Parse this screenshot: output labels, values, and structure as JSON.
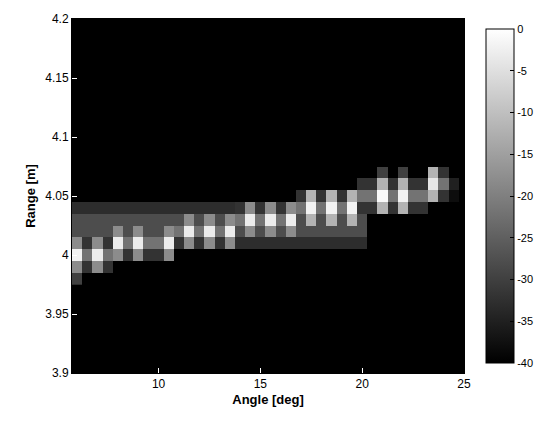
{
  "chart_data": {
    "type": "heatmap",
    "xlabel": "Angle [deg]",
    "ylabel": "Range [m]",
    "x": [
      6.0,
      6.5,
      7.0,
      7.5,
      8.0,
      8.5,
      9.0,
      9.5,
      10.0,
      10.5,
      11.0,
      11.5,
      12.0,
      12.5,
      13.0,
      13.5,
      14.0,
      14.5,
      15.0,
      15.5,
      16.0,
      16.5,
      17.0,
      17.5,
      18.0,
      18.5,
      19.0,
      19.5,
      20.0,
      20.5,
      21.0,
      21.5,
      22.0,
      22.5,
      23.0,
      23.5,
      24.0,
      24.5,
      25.0
    ],
    "y": [
      3.98,
      3.99,
      4.0,
      4.01,
      4.02,
      4.03,
      4.04,
      4.05,
      4.06,
      4.07,
      4.08
    ],
    "values": [
      [
        -30,
        -40,
        -40,
        -40,
        -40,
        -40,
        -40,
        -40,
        -40,
        -40,
        -40,
        -40,
        -40,
        -40,
        -40,
        -40,
        -40,
        -40,
        -40,
        -40,
        -40,
        -40,
        -40,
        -40,
        -40,
        -40,
        -40,
        -40,
        -40,
        -40,
        -40,
        -40,
        -40,
        -40,
        -40,
        -40,
        -40,
        -40,
        -40
      ],
      [
        -18,
        -32,
        -18,
        -32,
        -40,
        -40,
        -40,
        -40,
        -40,
        -40,
        -40,
        -40,
        -40,
        -40,
        -40,
        -40,
        -40,
        -40,
        -40,
        -40,
        -40,
        -40,
        -40,
        -40,
        -40,
        -40,
        -40,
        -40,
        -40,
        -40,
        -40,
        -40,
        -40,
        -40,
        -40,
        -40,
        -40,
        -40,
        -40
      ],
      [
        -2,
        -22,
        -3,
        -22,
        -18,
        -32,
        -18,
        -32,
        -32,
        -18,
        -40,
        -40,
        -40,
        -40,
        -40,
        -40,
        -40,
        -40,
        -40,
        -40,
        -40,
        -40,
        -40,
        -40,
        -40,
        -40,
        -40,
        -40,
        -40,
        -40,
        -40,
        -40,
        -40,
        -40,
        -40,
        -40,
        -40,
        -40,
        -40
      ],
      [
        -18,
        -32,
        -18,
        -32,
        -3,
        -22,
        -3,
        -22,
        -22,
        -3,
        -32,
        -18,
        -32,
        -18,
        -32,
        -18,
        -33,
        -33,
        -33,
        -33,
        -33,
        -33,
        -33,
        -33,
        -33,
        -33,
        -33,
        -33,
        -33,
        -40,
        -40,
        -40,
        -40,
        -40,
        -40,
        -40,
        -40,
        -40,
        -40
      ],
      [
        -28,
        -28,
        -28,
        -28,
        -18,
        -28,
        -18,
        -28,
        -28,
        -18,
        -22,
        -3,
        -22,
        -3,
        -22,
        -3,
        -28,
        -18,
        -28,
        -18,
        -28,
        -18,
        -28,
        -28,
        -28,
        -28,
        -28,
        -28,
        -28,
        -40,
        -40,
        -40,
        -40,
        -40,
        -40,
        -40,
        -40,
        -40,
        -40
      ],
      [
        -28,
        -28,
        -28,
        -28,
        -28,
        -28,
        -28,
        -28,
        -28,
        -28,
        -28,
        -18,
        -28,
        -18,
        -28,
        -18,
        -22,
        -3,
        -22,
        -3,
        -22,
        -3,
        -28,
        -12,
        -28,
        -12,
        -28,
        -12,
        -28,
        -40,
        -40,
        -40,
        -40,
        -40,
        -40,
        -40,
        -40,
        -40,
        -40
      ],
      [
        -33,
        -33,
        -33,
        -33,
        -33,
        -33,
        -33,
        -33,
        -33,
        -33,
        -33,
        -33,
        -33,
        -33,
        -33,
        -33,
        -32,
        -18,
        -32,
        -18,
        -32,
        -18,
        -22,
        -2,
        -22,
        -2,
        -22,
        -2,
        -32,
        -32,
        -12,
        -32,
        -12,
        -32,
        -32,
        -40,
        -40,
        -40,
        -40
      ],
      [
        -40,
        -40,
        -40,
        -40,
        -40,
        -40,
        -40,
        -40,
        -40,
        -40,
        -40,
        -40,
        -40,
        -40,
        -40,
        -40,
        -40,
        -40,
        -40,
        -40,
        -40,
        -40,
        -32,
        -12,
        -32,
        -12,
        -32,
        -12,
        -22,
        -22,
        -1,
        -22,
        -2,
        -22,
        -22,
        -12,
        -32,
        -38,
        -40
      ],
      [
        -40,
        -40,
        -40,
        -40,
        -40,
        -40,
        -40,
        -40,
        -40,
        -40,
        -40,
        -40,
        -40,
        -40,
        -40,
        -40,
        -40,
        -40,
        -40,
        -40,
        -40,
        -40,
        -40,
        -40,
        -40,
        -40,
        -40,
        -40,
        -32,
        -32,
        -12,
        -32,
        -12,
        -32,
        -32,
        -4,
        -22,
        -35,
        -40
      ],
      [
        -40,
        -40,
        -40,
        -40,
        -40,
        -40,
        -40,
        -40,
        -40,
        -40,
        -40,
        -40,
        -40,
        -40,
        -40,
        -40,
        -40,
        -40,
        -40,
        -40,
        -40,
        -40,
        -40,
        -40,
        -40,
        -40,
        -40,
        -40,
        -40,
        -40,
        -30,
        -40,
        -30,
        -40,
        -40,
        -12,
        -32,
        -40,
        -40
      ],
      [
        -40,
        -40,
        -40,
        -40,
        -40,
        -40,
        -40,
        -40,
        -40,
        -40,
        -40,
        -40,
        -40,
        -40,
        -40,
        -40,
        -40,
        -40,
        -40,
        -40,
        -40,
        -40,
        -40,
        -40,
        -40,
        -40,
        -40,
        -40,
        -40,
        -40,
        -40,
        -40,
        -40,
        -40,
        -40,
        -40,
        -40,
        -40,
        -40
      ]
    ],
    "xlim": [
      5.75,
      25
    ],
    "xticks": [
      10,
      15,
      20,
      25
    ],
    "ylim": [
      3.9,
      4.2
    ],
    "yticks": [
      3.9,
      3.95,
      4,
      4.05,
      4.1,
      4.15,
      4.2
    ],
    "colorbar_range": [
      -40,
      0
    ],
    "colorbar_ticks": [
      0,
      -5,
      -10,
      -15,
      -20,
      -25,
      -30,
      -35,
      -40
    ]
  }
}
